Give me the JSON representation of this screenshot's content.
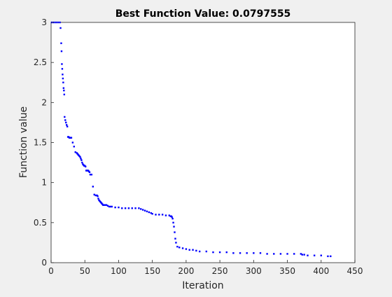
{
  "chart_data": {
    "type": "scatter",
    "title": "Best Function Value: 0.0797555",
    "xlabel": "Iteration",
    "ylabel": "Function value",
    "xlim": [
      0,
      450
    ],
    "ylim": [
      0,
      3
    ],
    "xticks": [
      0,
      50,
      100,
      150,
      200,
      250,
      300,
      350,
      400,
      450
    ],
    "yticks": [
      0,
      0.5,
      1,
      1.5,
      2,
      2.5,
      3
    ],
    "xtick_labels": [
      "0",
      "50",
      "100",
      "150",
      "200",
      "250",
      "300",
      "350",
      "400",
      "450"
    ],
    "ytick_labels": [
      "0",
      "0.5",
      "1",
      "1.5",
      "2",
      "2.5",
      "3"
    ],
    "grid": false,
    "legend": "none",
    "marker_color": "#0000ff",
    "series": [
      {
        "x": [
          1,
          4,
          7,
          10,
          13,
          14,
          15,
          15.5,
          16,
          16.5,
          17,
          17.5,
          18,
          18.5,
          19,
          19.5,
          20,
          21,
          22,
          23,
          24,
          25,
          26,
          27,
          28,
          29,
          30,
          32,
          34,
          36,
          38,
          39,
          40,
          41,
          42,
          43,
          44,
          45,
          46,
          47,
          48,
          49,
          50,
          51,
          52,
          53,
          54,
          55,
          56,
          57,
          58,
          60,
          62,
          64,
          66,
          68,
          69,
          70,
          71,
          72,
          73,
          74,
          75,
          76,
          77,
          78,
          80,
          82,
          84,
          86,
          88,
          90,
          95,
          100,
          105,
          110,
          115,
          120,
          125,
          130,
          133,
          136,
          139,
          142,
          145,
          148,
          150,
          155,
          160,
          165,
          170,
          175,
          177,
          178,
          179,
          180,
          181,
          182,
          183,
          184,
          185,
          187,
          190,
          195,
          200,
          205,
          210,
          215,
          220,
          230,
          240,
          250,
          260,
          270,
          280,
          290,
          300,
          310,
          320,
          330,
          340,
          350,
          360,
          370,
          372,
          375,
          380,
          390,
          400,
          410,
          414
        ],
        "y": [
          3.0,
          3.0,
          3.0,
          3.0,
          3.0,
          2.93,
          2.74,
          2.64,
          2.48,
          2.42,
          2.35,
          2.3,
          2.25,
          2.18,
          2.15,
          2.1,
          1.82,
          1.78,
          1.75,
          1.72,
          1.7,
          1.57,
          1.57,
          1.56,
          1.56,
          1.56,
          1.56,
          1.5,
          1.45,
          1.38,
          1.37,
          1.36,
          1.35,
          1.34,
          1.33,
          1.32,
          1.3,
          1.28,
          1.25,
          1.23,
          1.22,
          1.21,
          1.21,
          1.2,
          1.15,
          1.15,
          1.15,
          1.15,
          1.14,
          1.13,
          1.1,
          1.1,
          0.95,
          0.85,
          0.84,
          0.84,
          0.83,
          0.8,
          0.78,
          0.77,
          0.76,
          0.75,
          0.74,
          0.73,
          0.72,
          0.72,
          0.72,
          0.72,
          0.71,
          0.7,
          0.7,
          0.7,
          0.69,
          0.69,
          0.68,
          0.68,
          0.68,
          0.68,
          0.68,
          0.68,
          0.67,
          0.66,
          0.65,
          0.64,
          0.63,
          0.62,
          0.61,
          0.6,
          0.6,
          0.6,
          0.59,
          0.59,
          0.58,
          0.58,
          0.57,
          0.55,
          0.5,
          0.45,
          0.38,
          0.3,
          0.25,
          0.2,
          0.19,
          0.18,
          0.17,
          0.16,
          0.16,
          0.15,
          0.14,
          0.14,
          0.13,
          0.13,
          0.13,
          0.12,
          0.12,
          0.12,
          0.12,
          0.12,
          0.11,
          0.11,
          0.11,
          0.11,
          0.11,
          0.11,
          0.1,
          0.1,
          0.09,
          0.09,
          0.09,
          0.08,
          0.08
        ]
      }
    ]
  }
}
